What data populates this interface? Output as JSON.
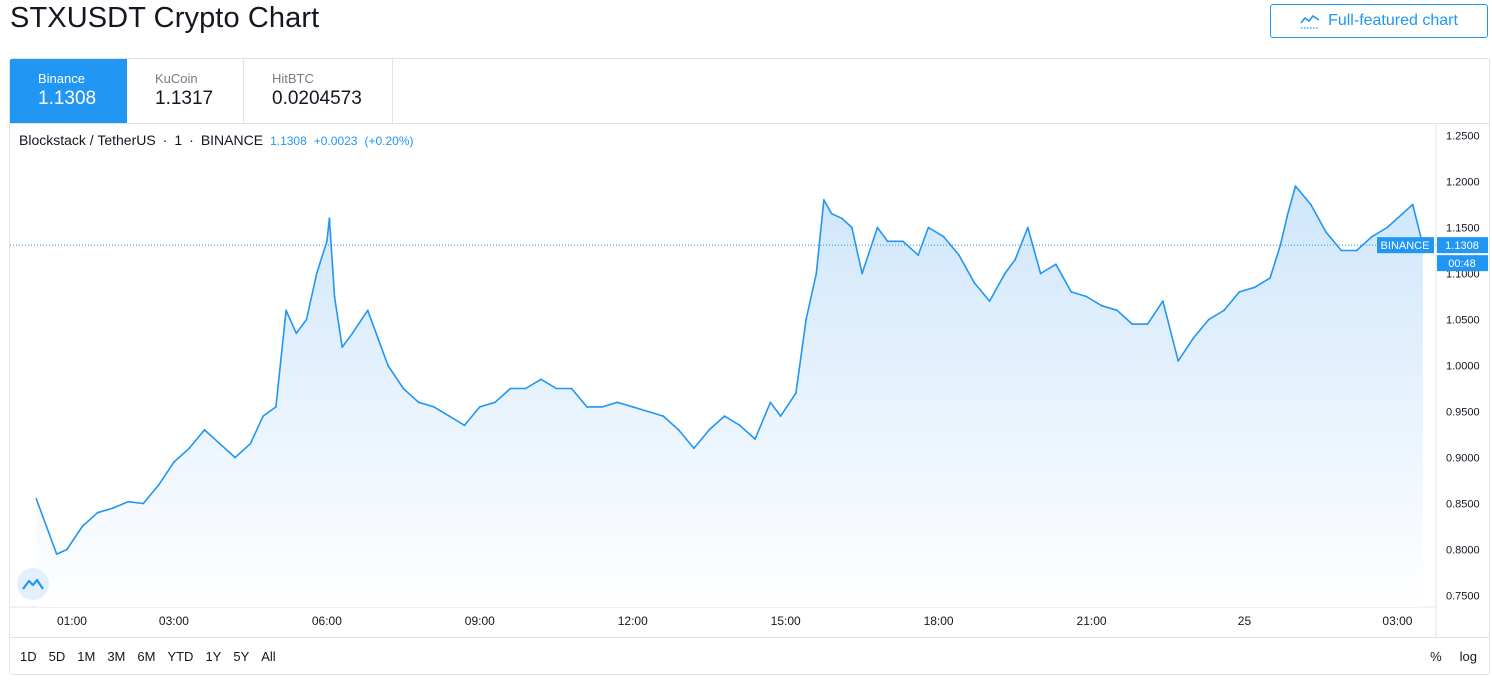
{
  "header": {
    "title": "STXUSDT Crypto Chart",
    "full_chart_label": "Full-featured chart",
    "full_chart_icon": "chart-line-icon"
  },
  "exchanges": [
    {
      "name": "Binance",
      "price": "1.1308",
      "active": true
    },
    {
      "name": "KuCoin",
      "price": "1.1317",
      "active": false
    },
    {
      "name": "HitBTC",
      "price": "0.0204573",
      "active": false
    }
  ],
  "legend": {
    "symbol": "Blockstack / TetherUS",
    "sep1": "·",
    "interval": "1",
    "sep2": "·",
    "exchange": "BINANCE",
    "price": "1.1308",
    "change": "+0.0023",
    "change_pct": "(+0.20%)"
  },
  "colors": {
    "accent": "#2196f3",
    "line": "#2196f3",
    "area_top": "#cfe6fb",
    "area_bottom": "#ffffff",
    "grid_border": "#e0e3eb",
    "last_price_badge": "#2196f3"
  },
  "price_badge": {
    "exchange_label": "BINANCE",
    "price_label": "1.1308",
    "countdown": "00:48"
  },
  "range_buttons": [
    "1D",
    "5D",
    "1M",
    "3M",
    "6M",
    "YTD",
    "1Y",
    "5Y",
    "All"
  ],
  "scale_buttons": {
    "percent": "%",
    "log": "log"
  },
  "chart_data": {
    "type": "area",
    "series": [
      {
        "name": "Blockstack / TetherUS",
        "x": [
          0.3,
          0.5,
          0.7,
          0.9,
          1.2,
          1.5,
          1.8,
          2.1,
          2.4,
          2.7,
          3.0,
          3.3,
          3.6,
          3.9,
          4.2,
          4.5,
          4.75,
          5.0,
          5.2,
          5.4,
          5.6,
          5.8,
          6.0,
          6.05,
          6.15,
          6.3,
          6.5,
          6.8,
          7.2,
          7.5,
          7.8,
          8.1,
          8.4,
          8.7,
          9.0,
          9.3,
          9.6,
          9.9,
          10.2,
          10.5,
          10.8,
          11.1,
          11.4,
          11.7,
          12.0,
          12.3,
          12.6,
          12.9,
          13.2,
          13.5,
          13.8,
          14.1,
          14.4,
          14.7,
          14.9,
          15.2,
          15.4,
          15.6,
          15.75,
          15.9,
          16.1,
          16.3,
          16.5,
          16.8,
          17.0,
          17.3,
          17.6,
          17.8,
          18.1,
          18.4,
          18.7,
          19.0,
          19.3,
          19.5,
          19.75,
          20.0,
          20.3,
          20.6,
          20.9,
          21.2,
          21.5,
          21.8,
          22.1,
          22.4,
          22.7,
          23.0,
          23.3,
          23.6,
          23.9,
          24.2,
          24.5,
          24.7,
          24.85,
          25.0,
          25.3,
          25.6,
          25.9,
          26.2,
          26.5,
          26.8,
          27.1,
          27.3,
          27.5
        ],
        "y": [
          0.855,
          0.825,
          0.795,
          0.8,
          0.825,
          0.84,
          0.845,
          0.852,
          0.85,
          0.87,
          0.895,
          0.91,
          0.93,
          0.915,
          0.9,
          0.915,
          0.945,
          0.955,
          1.06,
          1.035,
          1.05,
          1.1,
          1.135,
          1.16,
          1.075,
          1.02,
          1.035,
          1.06,
          1.0,
          0.975,
          0.96,
          0.955,
          0.945,
          0.935,
          0.955,
          0.96,
          0.975,
          0.975,
          0.985,
          0.975,
          0.975,
          0.955,
          0.955,
          0.96,
          0.955,
          0.95,
          0.945,
          0.93,
          0.91,
          0.93,
          0.945,
          0.935,
          0.92,
          0.96,
          0.945,
          0.97,
          1.05,
          1.1,
          1.18,
          1.165,
          1.16,
          1.15,
          1.1,
          1.15,
          1.135,
          1.135,
          1.12,
          1.15,
          1.14,
          1.12,
          1.09,
          1.07,
          1.1,
          1.115,
          1.15,
          1.1,
          1.11,
          1.08,
          1.075,
          1.065,
          1.06,
          1.045,
          1.045,
          1.07,
          1.005,
          1.03,
          1.05,
          1.06,
          1.08,
          1.085,
          1.095,
          1.13,
          1.165,
          1.195,
          1.175,
          1.145,
          1.125,
          1.125,
          1.14,
          1.15,
          1.165,
          1.175,
          1.1308
        ]
      }
    ],
    "x_ticks": [
      {
        "value": 1,
        "label": "01:00"
      },
      {
        "value": 3,
        "label": "03:00"
      },
      {
        "value": 6,
        "label": "06:00"
      },
      {
        "value": 9,
        "label": "09:00"
      },
      {
        "value": 12,
        "label": "12:00"
      },
      {
        "value": 15,
        "label": "15:00"
      },
      {
        "value": 18,
        "label": "18:00"
      },
      {
        "value": 21,
        "label": "21:00"
      },
      {
        "value": 24,
        "label": "25"
      },
      {
        "value": 27,
        "label": "03:00"
      }
    ],
    "y_ticks": [
      "1.2500",
      "1.2000",
      "1.1500",
      "1.1000",
      "1.0500",
      "1.0000",
      "0.9500",
      "0.9000",
      "0.8500",
      "0.8000",
      "0.7500"
    ],
    "y_tick_values": [
      1.25,
      1.2,
      1.15,
      1.1,
      1.05,
      1.0,
      0.95,
      0.9,
      0.85,
      0.8,
      0.75
    ],
    "ylim": [
      0.7375,
      1.2625
    ],
    "xlim": [
      0,
      27.6
    ],
    "last_price": 1.1308,
    "grid": false
  }
}
